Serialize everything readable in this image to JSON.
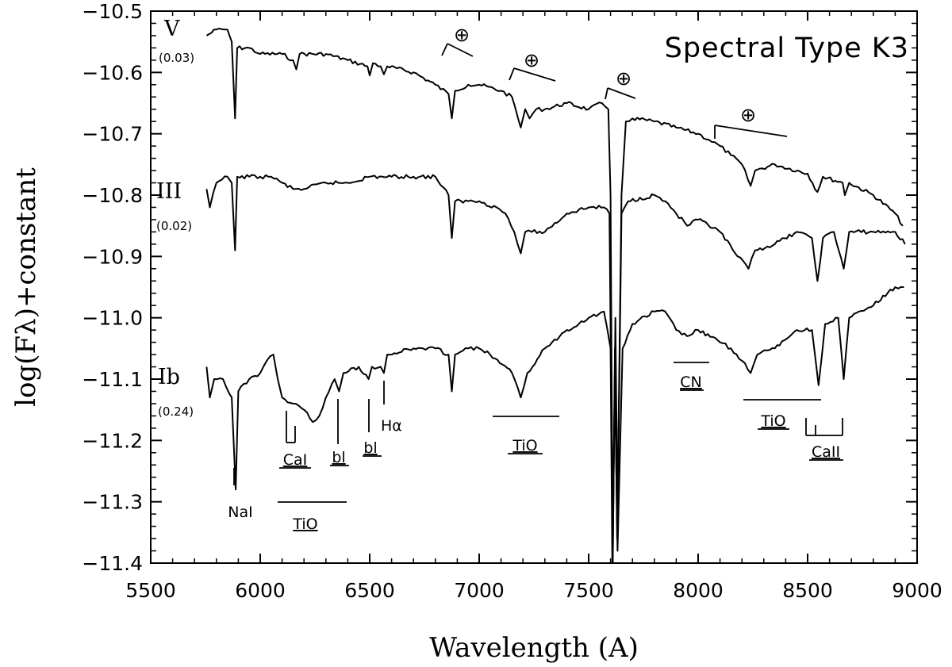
{
  "chart_data": {
    "type": "line",
    "title": "Spectral Type K3",
    "xlabel": "Wavelength (A)",
    "ylabel": "log(Fλ)+constant",
    "xlim": [
      5500,
      9000
    ],
    "ylim": [
      -11.4,
      -10.5
    ],
    "xticks": [
      5500,
      6000,
      6500,
      7000,
      7500,
      8000,
      8500,
      9000
    ],
    "xtick_labels": [
      "5500",
      "6000",
      "6500",
      "7000",
      "7500",
      "8000",
      "8500",
      "9000"
    ],
    "yticks": [
      -10.5,
      -10.6,
      -10.7,
      -10.8,
      -10.9,
      -11.0,
      -11.1,
      -11.2,
      -11.3,
      -11.4
    ],
    "ytick_labels": [
      "−10.5",
      "−10.6",
      "−10.7",
      "−10.8",
      "−10.9",
      "−11.0",
      "−11.1",
      "−11.2",
      "−11.3",
      "−11.4"
    ],
    "grid": false,
    "series": [
      {
        "name": "V",
        "sublabel": "(0.03)",
        "points": [
          [
            5755,
            -10.54
          ],
          [
            5800,
            -10.53
          ],
          [
            5850,
            -10.53
          ],
          [
            5870,
            -10.55
          ],
          [
            5885,
            -10.675
          ],
          [
            5895,
            -10.56
          ],
          [
            5950,
            -10.56
          ],
          [
            6000,
            -10.57
          ],
          [
            6100,
            -10.57
          ],
          [
            6150,
            -10.58
          ],
          [
            6165,
            -10.595
          ],
          [
            6180,
            -10.57
          ],
          [
            6300,
            -10.57
          ],
          [
            6400,
            -10.58
          ],
          [
            6490,
            -10.59
          ],
          [
            6500,
            -10.605
          ],
          [
            6515,
            -10.585
          ],
          [
            6550,
            -10.59
          ],
          [
            6565,
            -10.603
          ],
          [
            6580,
            -10.59
          ],
          [
            6700,
            -10.6
          ],
          [
            6800,
            -10.62
          ],
          [
            6860,
            -10.635
          ],
          [
            6875,
            -10.675
          ],
          [
            6890,
            -10.63
          ],
          [
            6950,
            -10.62
          ],
          [
            7000,
            -10.62
          ],
          [
            7100,
            -10.63
          ],
          [
            7150,
            -10.64
          ],
          [
            7190,
            -10.69
          ],
          [
            7210,
            -10.66
          ],
          [
            7230,
            -10.675
          ],
          [
            7260,
            -10.66
          ],
          [
            7300,
            -10.66
          ],
          [
            7400,
            -10.65
          ],
          [
            7500,
            -10.66
          ],
          [
            7560,
            -10.65
          ],
          [
            7590,
            -10.66
          ],
          [
            7600,
            -10.8
          ],
          [
            7610,
            -11.4
          ],
          [
            7620,
            -11.05
          ],
          [
            7630,
            -11.36
          ],
          [
            7650,
            -10.8
          ],
          [
            7670,
            -10.68
          ],
          [
            7700,
            -10.675
          ],
          [
            7800,
            -10.68
          ],
          [
            7900,
            -10.69
          ],
          [
            8000,
            -10.7
          ],
          [
            8050,
            -10.71
          ],
          [
            8100,
            -10.72
          ],
          [
            8150,
            -10.735
          ],
          [
            8200,
            -10.75
          ],
          [
            8240,
            -10.785
          ],
          [
            8260,
            -10.76
          ],
          [
            8350,
            -10.75
          ],
          [
            8500,
            -10.765
          ],
          [
            8545,
            -10.795
          ],
          [
            8570,
            -10.77
          ],
          [
            8660,
            -10.78
          ],
          [
            8670,
            -10.8
          ],
          [
            8690,
            -10.78
          ],
          [
            8800,
            -10.8
          ],
          [
            8900,
            -10.83
          ],
          [
            8935,
            -10.85
          ]
        ]
      },
      {
        "name": "III",
        "sublabel": "(0.02)",
        "points": [
          [
            5755,
            -10.79
          ],
          [
            5770,
            -10.82
          ],
          [
            5800,
            -10.78
          ],
          [
            5850,
            -10.77
          ],
          [
            5870,
            -10.78
          ],
          [
            5885,
            -10.89
          ],
          [
            5895,
            -10.77
          ],
          [
            5950,
            -10.77
          ],
          [
            6000,
            -10.77
          ],
          [
            6050,
            -10.77
          ],
          [
            6100,
            -10.78
          ],
          [
            6150,
            -10.79
          ],
          [
            6200,
            -10.79
          ],
          [
            6300,
            -10.78
          ],
          [
            6400,
            -10.78
          ],
          [
            6500,
            -10.77
          ],
          [
            6600,
            -10.77
          ],
          [
            6700,
            -10.77
          ],
          [
            6800,
            -10.77
          ],
          [
            6860,
            -10.8
          ],
          [
            6875,
            -10.87
          ],
          [
            6890,
            -10.81
          ],
          [
            6950,
            -10.81
          ],
          [
            7000,
            -10.81
          ],
          [
            7080,
            -10.82
          ],
          [
            7120,
            -10.83
          ],
          [
            7160,
            -10.86
          ],
          [
            7190,
            -10.895
          ],
          [
            7210,
            -10.86
          ],
          [
            7240,
            -10.86
          ],
          [
            7300,
            -10.86
          ],
          [
            7400,
            -10.83
          ],
          [
            7500,
            -10.82
          ],
          [
            7570,
            -10.82
          ],
          [
            7595,
            -10.83
          ],
          [
            7610,
            -11.39
          ],
          [
            7622,
            -11.0
          ],
          [
            7632,
            -11.33
          ],
          [
            7650,
            -10.83
          ],
          [
            7680,
            -10.81
          ],
          [
            7800,
            -10.8
          ],
          [
            7850,
            -10.81
          ],
          [
            7900,
            -10.83
          ],
          [
            7950,
            -10.85
          ],
          [
            8000,
            -10.84
          ],
          [
            8100,
            -10.86
          ],
          [
            8180,
            -10.9
          ],
          [
            8230,
            -10.92
          ],
          [
            8260,
            -10.89
          ],
          [
            8350,
            -10.88
          ],
          [
            8450,
            -10.86
          ],
          [
            8520,
            -10.87
          ],
          [
            8545,
            -10.94
          ],
          [
            8570,
            -10.87
          ],
          [
            8620,
            -10.86
          ],
          [
            8665,
            -10.92
          ],
          [
            8690,
            -10.86
          ],
          [
            8800,
            -10.86
          ],
          [
            8900,
            -10.86
          ],
          [
            8945,
            -10.88
          ]
        ]
      },
      {
        "name": "Ib",
        "sublabel": "(0.24)",
        "points": [
          [
            5755,
            -11.08
          ],
          [
            5770,
            -11.13
          ],
          [
            5790,
            -11.1
          ],
          [
            5830,
            -11.1
          ],
          [
            5870,
            -11.13
          ],
          [
            5888,
            -11.28
          ],
          [
            5900,
            -11.12
          ],
          [
            5950,
            -11.1
          ],
          [
            6000,
            -11.09
          ],
          [
            6030,
            -11.07
          ],
          [
            6060,
            -11.06
          ],
          [
            6080,
            -11.1
          ],
          [
            6100,
            -11.13
          ],
          [
            6150,
            -11.14
          ],
          [
            6200,
            -11.15
          ],
          [
            6240,
            -11.17
          ],
          [
            6270,
            -11.16
          ],
          [
            6300,
            -11.13
          ],
          [
            6340,
            -11.1
          ],
          [
            6360,
            -11.12
          ],
          [
            6380,
            -11.09
          ],
          [
            6450,
            -11.08
          ],
          [
            6495,
            -11.1
          ],
          [
            6510,
            -11.08
          ],
          [
            6550,
            -11.08
          ],
          [
            6565,
            -11.09
          ],
          [
            6580,
            -11.06
          ],
          [
            6700,
            -11.05
          ],
          [
            6800,
            -11.05
          ],
          [
            6860,
            -11.06
          ],
          [
            6875,
            -11.12
          ],
          [
            6890,
            -11.06
          ],
          [
            6950,
            -11.05
          ],
          [
            7000,
            -11.05
          ],
          [
            7050,
            -11.06
          ],
          [
            7150,
            -11.09
          ],
          [
            7190,
            -11.13
          ],
          [
            7220,
            -11.09
          ],
          [
            7300,
            -11.05
          ],
          [
            7400,
            -11.02
          ],
          [
            7500,
            -11.0
          ],
          [
            7570,
            -10.99
          ],
          [
            7600,
            -11.05
          ],
          [
            7608,
            -11.4
          ],
          [
            7620,
            -11.1
          ],
          [
            7632,
            -11.38
          ],
          [
            7655,
            -11.05
          ],
          [
            7700,
            -11.01
          ],
          [
            7800,
            -10.99
          ],
          [
            7850,
            -10.99
          ],
          [
            7900,
            -11.02
          ],
          [
            7950,
            -11.03
          ],
          [
            8000,
            -11.02
          ],
          [
            8100,
            -11.04
          ],
          [
            8150,
            -11.05
          ],
          [
            8200,
            -11.07
          ],
          [
            8240,
            -11.09
          ],
          [
            8270,
            -11.06
          ],
          [
            8350,
            -11.05
          ],
          [
            8450,
            -11.02
          ],
          [
            8520,
            -11.02
          ],
          [
            8550,
            -11.11
          ],
          [
            8580,
            -11.01
          ],
          [
            8640,
            -11.0
          ],
          [
            8665,
            -11.1
          ],
          [
            8690,
            -11.0
          ],
          [
            8800,
            -10.98
          ],
          [
            8900,
            -10.95
          ],
          [
            8940,
            -10.95
          ]
        ]
      }
    ],
    "annotations": [
      "NaI",
      "TiO",
      "CaI",
      "bl",
      "bl",
      "Hα",
      "TiO",
      "CN",
      "TiO",
      "CaII",
      "⊕",
      "⊕",
      "⊕",
      "⊕"
    ]
  }
}
